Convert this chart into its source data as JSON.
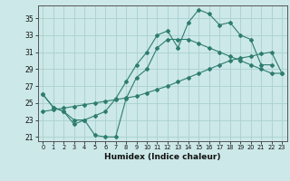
{
  "xlabel": "Humidex (Indice chaleur)",
  "bg_color": "#cce8e8",
  "grid_color": "#aacfcf",
  "line_color": "#2e7d6e",
  "xlim": [
    -0.5,
    23.5
  ],
  "ylim": [
    20.5,
    36.5
  ],
  "yticks": [
    21,
    23,
    25,
    27,
    29,
    31,
    33,
    35
  ],
  "xticks": [
    0,
    1,
    2,
    3,
    4,
    5,
    6,
    7,
    8,
    9,
    10,
    11,
    12,
    13,
    14,
    15,
    16,
    17,
    18,
    19,
    20,
    21,
    22,
    23
  ],
  "line1_x": [
    0,
    1,
    2,
    3,
    4,
    5,
    6,
    7,
    8,
    9,
    10,
    11,
    12,
    13,
    14,
    15,
    16,
    17,
    18,
    19,
    20,
    21,
    22
  ],
  "line1_y": [
    26.0,
    24.5,
    24.0,
    23.0,
    23.0,
    23.5,
    24.0,
    25.5,
    27.5,
    29.5,
    31.0,
    33.0,
    33.5,
    31.5,
    34.5,
    36.0,
    35.5,
    34.2,
    34.5,
    33.0,
    32.5,
    29.5,
    29.5
  ],
  "line2_x": [
    0,
    1,
    2,
    3,
    4,
    5,
    6,
    7,
    8,
    9,
    10,
    11,
    12,
    13,
    14,
    15,
    16,
    17,
    18,
    19,
    20,
    21,
    22,
    23
  ],
  "line2_y": [
    26.0,
    24.5,
    24.0,
    22.5,
    23.0,
    21.2,
    21.0,
    21.0,
    25.5,
    28.0,
    29.0,
    31.5,
    32.5,
    32.5,
    32.5,
    32.0,
    31.5,
    31.0,
    30.5,
    30.0,
    29.5,
    29.0,
    28.5,
    28.5
  ],
  "line3_x": [
    0,
    1,
    2,
    3,
    4,
    5,
    6,
    7,
    8,
    9,
    10,
    11,
    12,
    13,
    14,
    15,
    16,
    17,
    18,
    19,
    20,
    21,
    22,
    23
  ],
  "line3_y": [
    24.0,
    24.2,
    24.4,
    24.6,
    24.8,
    25.0,
    25.2,
    25.4,
    25.6,
    25.8,
    26.2,
    26.6,
    27.0,
    27.5,
    28.0,
    28.5,
    29.0,
    29.5,
    30.0,
    30.3,
    30.5,
    30.8,
    31.0,
    28.5
  ]
}
